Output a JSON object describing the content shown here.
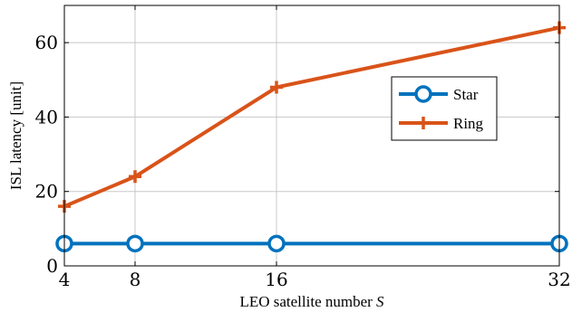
{
  "chart_data": {
    "type": "line",
    "xlabel": "LEO satellite number",
    "xlabel_var": "S",
    "ylabel": "ISL latency [unit]",
    "x": [
      4,
      8,
      16,
      32
    ],
    "xticks": [
      "4",
      "8",
      "16",
      "32"
    ],
    "yticks": [
      "0",
      "20",
      "40",
      "60"
    ],
    "ytick_values": [
      0,
      20,
      40,
      60
    ],
    "xlim": [
      4,
      32
    ],
    "ylim": [
      0,
      70
    ],
    "grid": true,
    "legend_position": "right-middle",
    "series": [
      {
        "name": "Star",
        "values": [
          6,
          6,
          6,
          6
        ],
        "color": "#0072BD",
        "marker": "circle"
      },
      {
        "name": "Ring",
        "values": [
          16,
          24,
          48,
          64
        ],
        "color": "#D95319",
        "marker": "plus"
      }
    ]
  }
}
